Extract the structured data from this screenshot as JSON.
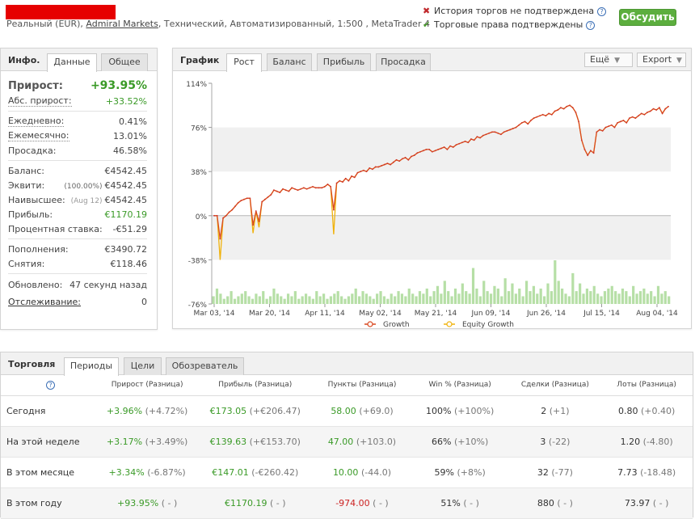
{
  "header": {
    "subtitle_prefix": "Реальный (EUR), ",
    "broker": "Admiral Markets",
    "subtitle_suffix": ", Технический, Автоматизированный, 1:500 , MetaTrader 4",
    "status_1": "История торгов не подтверждена",
    "status_2": "Торговые права подтверждены",
    "discuss_label": "Обсудить"
  },
  "info": {
    "title": "Инфо.",
    "tab_data": "Данные",
    "tab_general": "Общее",
    "growth_label": "Прирост:",
    "growth_value": "+93.95%",
    "abs_growth_label": "Абс. прирост:",
    "abs_growth_value": "+33.52%",
    "daily_label": "Ежедневно:",
    "daily_value": "0.41%",
    "monthly_label": "Ежемесячно:",
    "monthly_value": "13.01%",
    "drawdown_label": "Просадка:",
    "drawdown_value": "46.58%",
    "balance_label": "Баланс:",
    "balance_value": "€4542.45",
    "equity_label": "Эквити:",
    "equity_pct": "(100.00%)",
    "equity_value": "€4542.45",
    "highest_label": "Наивысшее:",
    "highest_date": "(Aug 12)",
    "highest_value": "€4542.45",
    "profit_label": "Прибыль:",
    "profit_value": "€1170.19",
    "interest_label": "Процентная ставка:",
    "interest_value": "-€51.29",
    "deposits_label": "Пополнения:",
    "deposits_value": "€3490.72",
    "withdrawals_label": "Снятия:",
    "withdrawals_value": "€118.46",
    "updated_label": "Обновлено:",
    "updated_value": "47 секунд назад",
    "tracking_label": "Отслеживание:",
    "tracking_value": "0"
  },
  "chart_panel": {
    "title": "График",
    "tabs": [
      "Рост",
      "Баланс",
      "Прибыль",
      "Просадка"
    ],
    "more_label": "Ещё",
    "export_label": "Export"
  },
  "chart_data": {
    "type": "line",
    "y_ticks": [
      "114%",
      "76%",
      "38%",
      "0%",
      "-38%",
      "-76%"
    ],
    "x_ticks": [
      "Mar 03, '14",
      "Mar 20, '14",
      "Apr 11, '14",
      "May 02, '14",
      "May 21, '14",
      "Jun 09, '14",
      "Jun 26, '14",
      "Jul 15, '14",
      "Aug 04, '14"
    ],
    "ylim": [
      -76,
      114
    ],
    "series": [
      {
        "name": "Growth",
        "color": "#d9481f",
        "values": [
          0,
          0,
          -20,
          -2,
          0,
          3,
          5,
          8,
          11,
          13,
          14,
          15,
          15,
          -8,
          4,
          -5,
          12,
          14,
          16,
          18,
          22,
          21,
          20,
          23,
          22,
          21,
          24,
          23,
          22,
          23,
          24,
          23,
          24,
          25,
          24,
          24,
          24,
          25,
          27,
          25,
          5,
          28,
          30,
          29,
          32,
          30,
          34,
          33,
          37,
          38,
          39,
          38,
          41,
          40,
          42,
          42,
          43,
          44,
          45,
          44,
          46,
          48,
          47,
          49,
          50,
          48,
          51,
          52,
          54,
          55,
          56,
          57,
          57,
          55,
          56,
          57,
          58,
          59,
          57,
          60,
          59,
          61,
          62,
          63,
          64,
          63,
          66,
          65,
          68,
          67,
          69,
          70,
          71,
          72,
          72,
          71,
          70,
          72,
          73,
          74,
          75,
          76,
          78,
          80,
          81,
          79,
          82,
          84,
          85,
          86,
          87,
          86,
          88,
          87,
          90,
          91,
          93,
          92,
          94,
          95,
          93,
          89,
          81,
          65,
          57,
          52,
          56,
          54,
          72,
          74,
          73,
          76,
          77,
          78,
          76,
          80,
          81,
          82,
          80,
          84,
          85,
          84,
          86,
          88,
          87,
          89,
          90,
          92,
          91,
          93,
          88,
          92,
          94
        ]
      },
      {
        "name": "Equity Growth",
        "color": "#f0b20c",
        "values": [
          0,
          0,
          -38,
          -2,
          0,
          3,
          5,
          8,
          11,
          13,
          14,
          15,
          15,
          -15,
          4,
          -10,
          12,
          14,
          16,
          18,
          22,
          21,
          20,
          23,
          22,
          21,
          24,
          23,
          22,
          23,
          24,
          23,
          24,
          25,
          24,
          24,
          24,
          25,
          27,
          25,
          -16,
          28,
          30,
          29,
          32,
          30,
          34,
          33,
          37,
          38,
          39,
          38,
          41,
          40,
          42,
          42,
          43,
          44,
          45,
          44,
          46,
          48,
          47,
          49,
          50,
          48,
          51,
          52,
          54,
          55,
          56,
          57,
          57,
          55,
          56,
          57,
          58,
          59,
          57,
          60,
          59,
          61,
          62,
          63,
          64,
          63,
          66,
          65,
          68,
          67,
          69,
          70,
          71,
          72,
          72,
          71,
          70,
          72,
          73,
          74,
          75,
          76,
          78,
          80,
          81,
          79,
          82,
          84,
          85,
          86,
          87,
          86,
          88,
          87,
          90,
          91,
          93,
          92,
          94,
          95,
          93,
          89,
          81,
          65,
          57,
          52,
          56,
          54,
          72,
          74,
          73,
          76,
          77,
          78,
          76,
          80,
          81,
          82,
          80,
          84,
          85,
          84,
          86,
          88,
          87,
          89,
          90,
          92,
          91,
          93,
          88,
          92,
          94
        ]
      }
    ],
    "volume_bars": [
      3,
      6,
      4,
      2,
      3,
      5,
      2,
      3,
      4,
      5,
      3,
      2,
      4,
      3,
      5,
      2,
      3,
      6,
      4,
      3,
      2,
      4,
      3,
      5,
      2,
      3,
      4,
      3,
      2,
      5,
      3,
      4,
      2,
      3,
      4,
      5,
      3,
      2,
      3,
      4,
      6,
      3,
      5,
      4,
      3,
      2,
      4,
      5,
      3,
      2,
      4,
      3,
      5,
      4,
      3,
      6,
      4,
      3,
      5,
      4,
      6,
      3,
      5,
      7,
      4,
      9,
      5,
      3,
      6,
      4,
      8,
      5,
      4,
      14,
      6,
      3,
      9,
      5,
      4,
      7,
      6,
      3,
      10,
      5,
      8,
      4,
      6,
      3,
      9,
      5,
      7,
      4,
      6,
      3,
      8,
      5,
      17,
      9,
      6,
      4,
      3,
      12,
      5,
      8,
      4,
      6,
      5,
      7,
      4,
      3,
      5,
      6,
      7,
      5,
      4,
      6,
      5,
      3,
      7,
      4,
      5,
      6,
      4,
      5,
      3,
      7,
      4,
      5,
      3
    ]
  },
  "trading": {
    "title": "Торговля",
    "tabs": [
      "Периоды",
      "Цели",
      "Обозреватель"
    ],
    "headers": [
      "Прирост (Разница)",
      "Прибыль (Разница)",
      "Пункты (Разница)",
      "Win % (Разница)",
      "Сделки (Разница)",
      "Лоты (Разница)"
    ],
    "rows": [
      {
        "label": "Сегодня",
        "growth": "+3.96%",
        "growth_d": "(+4.72%)",
        "profit": "€173.05",
        "profit_d": "(+€206.47)",
        "pips": "58.00",
        "pips_d": "(+69.0)",
        "win": "100%",
        "win_d": "(+100%)",
        "trades": "2",
        "trades_d": "(+1)",
        "lots": "0.80",
        "lots_d": "(+0.40)"
      },
      {
        "label": "На этой неделе",
        "growth": "+3.17%",
        "growth_d": "(+3.49%)",
        "profit": "€139.63",
        "profit_d": "(+€153.70)",
        "pips": "47.00",
        "pips_d": "(+103.0)",
        "win": "66%",
        "win_d": "(+10%)",
        "trades": "3",
        "trades_d": "(-22)",
        "lots": "1.20",
        "lots_d": "(-4.80)"
      },
      {
        "label": "В этом месяце",
        "growth": "+3.34%",
        "growth_d": "(-6.87%)",
        "profit": "€147.01",
        "profit_d": "(-€260.42)",
        "pips": "10.00",
        "pips_d": "(-44.0)",
        "win": "59%",
        "win_d": "(+8%)",
        "trades": "32",
        "trades_d": "(-77)",
        "lots": "7.73",
        "lots_d": "(-18.48)"
      },
      {
        "label": "В этом году",
        "growth": "+93.95%",
        "growth_d": "( - )",
        "profit": "€1170.19",
        "profit_d": "( - )",
        "pips": "-974.00",
        "pips_d": "( - )",
        "win": "51%",
        "win_d": "( - )",
        "trades": "880",
        "trades_d": "( - )",
        "lots": "73.97",
        "lots_d": "( - )"
      }
    ]
  },
  "colors": {
    "growth": "#d9481f",
    "equity": "#f0b20c",
    "positive": "#3a9a27",
    "negative": "#cc2222",
    "button": "#5cae3e"
  }
}
